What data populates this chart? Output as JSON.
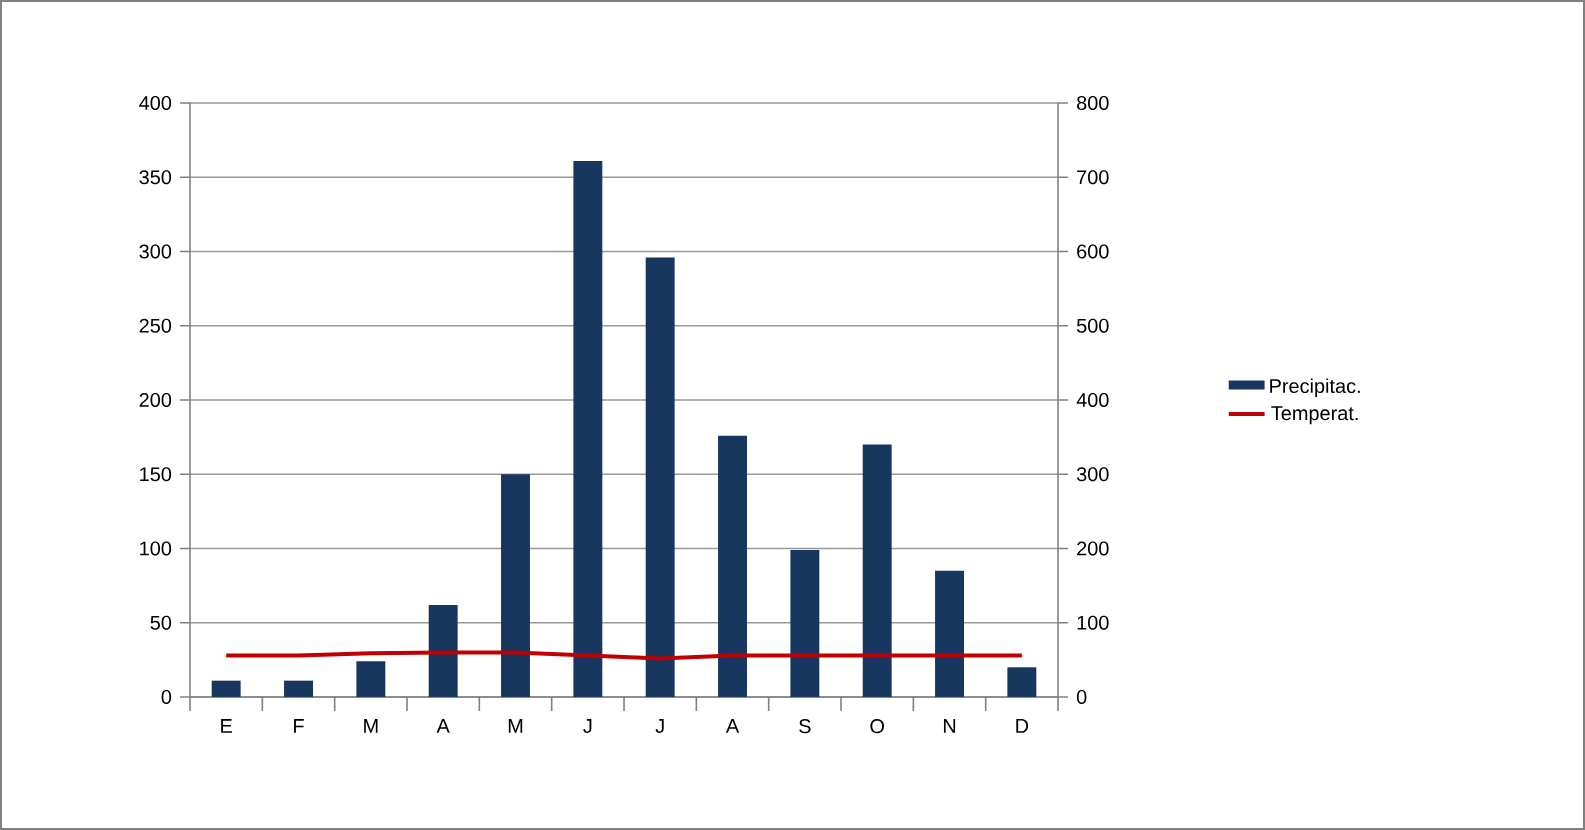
{
  "chart_data": {
    "type": "bar",
    "categories": [
      "E",
      "F",
      "M",
      "A",
      "M",
      "J",
      "J",
      "A",
      "S",
      "O",
      "N",
      "D"
    ],
    "series": [
      {
        "name": "Precipitac.",
        "color": "#17375e",
        "values": [
          11,
          11,
          24,
          62,
          150,
          361,
          296,
          176,
          99,
          170,
          85,
          20
        ]
      },
      {
        "name": "Temperat.",
        "type": "line",
        "axis": "y2",
        "color": "#c00000",
        "values": [
          56,
          56,
          59,
          60,
          60,
          56,
          52,
          56,
          56,
          56,
          56,
          56
        ]
      }
    ],
    "ylim": [
      0,
      400
    ],
    "yticks": [
      0,
      50,
      100,
      150,
      200,
      250,
      300,
      350,
      400
    ],
    "y2lim": [
      0,
      800
    ],
    "y2ticks": [
      0,
      100,
      200,
      300,
      400,
      500,
      600,
      700,
      800
    ],
    "grid": "y",
    "legend": "right",
    "marker": "none"
  }
}
